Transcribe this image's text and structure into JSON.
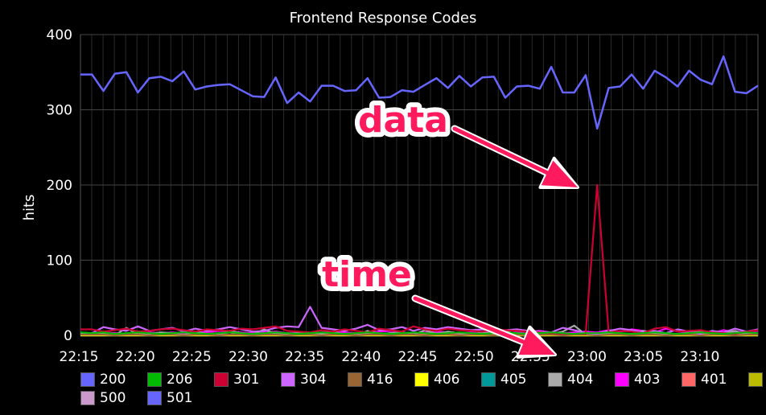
{
  "chart_data": {
    "type": "line",
    "title": "Frontend Response Codes",
    "xlabel": "",
    "ylabel": "hits",
    "ylim": [
      0,
      400
    ],
    "yticks": [
      "0",
      "100",
      "200",
      "300",
      "400"
    ],
    "xticks": [
      "22:15",
      "22:20",
      "22:25",
      "22:30",
      "22:35",
      "22:40",
      "22:45",
      "22:50",
      "22:55",
      "23:00",
      "23:05",
      "23:10"
    ],
    "x_minutes_range": [
      "22:15",
      "23:15"
    ],
    "grid": true,
    "legend_position": "bottom",
    "series": [
      {
        "name": "200",
        "color": "#6666ff",
        "values": [
          347,
          347,
          325,
          348,
          350,
          323,
          342,
          344,
          338,
          351,
          327,
          331,
          333,
          334,
          326,
          318,
          317,
          343,
          309,
          323,
          311,
          332,
          332,
          325,
          326,
          342,
          316,
          317,
          326,
          324,
          333,
          342,
          329,
          345,
          331,
          343,
          344,
          316,
          331,
          332,
          328,
          357,
          323,
          323,
          346,
          275,
          329,
          331,
          347,
          328,
          352,
          343,
          331,
          352,
          340,
          334,
          371,
          324,
          322,
          332
        ]
      },
      {
        "name": "206",
        "color": "#00bb00",
        "values": [
          4,
          3,
          4,
          2,
          3,
          4,
          3,
          2,
          3,
          4,
          3,
          2,
          3,
          4,
          3,
          2,
          3,
          4,
          3,
          2,
          3,
          4,
          3,
          2,
          3,
          4,
          3,
          2,
          3,
          4,
          3,
          2,
          3,
          4,
          3,
          2,
          3,
          4,
          3,
          2,
          3,
          4,
          3,
          2,
          3,
          3,
          4,
          3,
          2,
          3,
          4,
          3,
          2,
          3,
          4,
          3,
          2,
          3,
          4,
          3
        ]
      },
      {
        "name": "301",
        "color": "#cc0033",
        "values": [
          8,
          8,
          5,
          7,
          9,
          5,
          6,
          8,
          9,
          7,
          5,
          8,
          7,
          6,
          9,
          8,
          10,
          12,
          6,
          5,
          4,
          7,
          5,
          8,
          6,
          4,
          9,
          7,
          5,
          12,
          8,
          6,
          9,
          7,
          6,
          5,
          8,
          7,
          6,
          5,
          4,
          3,
          2,
          2,
          2,
          200,
          4,
          6,
          5,
          3,
          9,
          11,
          5,
          6,
          7,
          4,
          3,
          2,
          5,
          7
        ]
      },
      {
        "name": "304",
        "color": "#cc66ff",
        "values": [
          4,
          3,
          11,
          8,
          6,
          12,
          6,
          8,
          10,
          5,
          9,
          6,
          8,
          11,
          8,
          5,
          6,
          10,
          12,
          11,
          38,
          10,
          8,
          6,
          9,
          14,
          7,
          8,
          11,
          6,
          10,
          8,
          11,
          9,
          7,
          8,
          6,
          7,
          8,
          6,
          5,
          4,
          10,
          7,
          3,
          2,
          6,
          9,
          7,
          4,
          6,
          3,
          8,
          5,
          2,
          6,
          4,
          9,
          5,
          8
        ]
      },
      {
        "name": "416",
        "color": "#996633",
        "values": [
          1,
          1,
          1,
          0,
          1,
          1,
          0,
          1,
          1,
          0,
          1,
          1,
          0,
          1,
          1,
          0,
          1,
          1,
          0,
          1,
          1,
          0,
          1,
          1,
          0,
          1,
          1,
          0,
          1,
          1,
          0,
          1,
          1,
          0,
          1,
          1,
          0,
          1,
          1,
          0,
          1,
          1,
          0,
          1,
          1,
          0,
          1,
          1,
          0,
          1,
          1,
          0,
          1,
          1,
          0,
          1,
          1,
          0,
          1,
          1
        ]
      },
      {
        "name": "406",
        "color": "#ffff00",
        "values": [
          0,
          0,
          0,
          0,
          0,
          0,
          0,
          0,
          0,
          0,
          0,
          0,
          0,
          0,
          0,
          0,
          0,
          0,
          0,
          0,
          0,
          0,
          0,
          0,
          0,
          0,
          0,
          0,
          0,
          0,
          0,
          0,
          0,
          0,
          0,
          0,
          0,
          0,
          0,
          0,
          0,
          0,
          0,
          0,
          0,
          0,
          0,
          0,
          0,
          0,
          0,
          0,
          0,
          0,
          0,
          0,
          0,
          0,
          0,
          0
        ]
      },
      {
        "name": "405",
        "color": "#009999",
        "values": [
          0,
          0,
          0,
          0,
          0,
          0,
          0,
          0,
          0,
          0,
          0,
          0,
          0,
          0,
          0,
          0,
          0,
          0,
          0,
          0,
          0,
          0,
          0,
          0,
          0,
          0,
          0,
          0,
          0,
          0,
          0,
          0,
          0,
          0,
          0,
          0,
          0,
          0,
          0,
          0,
          0,
          0,
          0,
          0,
          0,
          0,
          0,
          0,
          0,
          0,
          0,
          0,
          0,
          0,
          0,
          0,
          0,
          0,
          0,
          0
        ]
      },
      {
        "name": "404",
        "color": "#aaaaaa",
        "values": [
          2,
          1,
          3,
          0,
          10,
          1,
          2,
          4,
          3,
          0,
          5,
          2,
          1,
          6,
          3,
          1,
          8,
          2,
          1,
          4,
          3,
          2,
          5,
          1,
          0,
          6,
          2,
          3,
          4,
          1,
          7,
          2,
          5,
          3,
          1,
          4,
          2,
          6,
          1,
          0,
          3,
          2,
          5,
          13,
          1,
          0,
          4,
          2,
          1,
          6,
          3,
          2,
          1,
          4,
          5,
          2,
          3,
          6,
          1,
          2
        ]
      },
      {
        "name": "403",
        "color": "#ff00ff",
        "values": [
          2,
          3,
          4,
          3,
          2,
          5,
          4,
          3,
          4,
          3,
          5,
          4,
          6,
          5,
          4,
          3,
          4,
          5,
          3,
          4,
          3,
          4,
          5,
          4,
          3,
          4,
          5,
          6,
          4,
          3,
          4,
          5,
          4,
          3,
          4,
          5,
          4,
          3,
          4,
          5,
          6,
          4,
          3,
          4,
          5,
          4,
          7,
          5,
          8,
          6,
          4,
          9,
          5,
          4,
          6,
          3,
          7,
          4,
          5,
          6
        ]
      },
      {
        "name": "401",
        "color": "#ff6666",
        "values": [
          1,
          1,
          2,
          1,
          1,
          2,
          1,
          1,
          2,
          1,
          1,
          2,
          1,
          1,
          2,
          1,
          1,
          2,
          1,
          1,
          2,
          1,
          1,
          2,
          1,
          1,
          2,
          1,
          1,
          2,
          1,
          1,
          2,
          1,
          1,
          2,
          1,
          1,
          2,
          1,
          1,
          2,
          1,
          1,
          2,
          1,
          1,
          2,
          1,
          1,
          2,
          1,
          1,
          2,
          1,
          1,
          2,
          1,
          1,
          2
        ]
      },
      {
        "name": "",
        "color": "#bbbb00",
        "values": [
          0,
          0,
          0,
          0,
          0,
          0,
          0,
          0,
          0,
          0,
          0,
          0,
          0,
          0,
          0,
          0,
          0,
          0,
          0,
          0,
          0,
          0,
          0,
          0,
          0,
          0,
          0,
          0,
          0,
          0,
          0,
          0,
          0,
          0,
          0,
          0,
          0,
          0,
          0,
          0,
          0,
          0,
          0,
          0,
          0,
          0,
          0,
          0,
          0,
          0,
          0,
          0,
          0,
          0,
          0,
          0,
          0,
          0,
          0,
          0
        ]
      },
      {
        "name": "500",
        "color": "#cc99cc",
        "values": [
          1,
          2,
          1,
          3,
          2,
          1,
          2,
          3,
          1,
          2,
          3,
          1,
          2,
          1,
          3,
          2,
          1,
          2,
          3,
          1,
          2,
          1,
          2,
          3,
          1,
          2,
          1,
          3,
          2,
          1,
          2,
          3,
          1,
          2,
          1,
          2,
          3,
          1,
          2,
          1,
          2,
          3,
          1,
          2,
          1,
          2,
          3,
          1,
          2,
          1,
          3,
          2,
          1,
          2,
          1,
          2,
          3,
          1,
          2,
          1
        ]
      },
      {
        "name": "501",
        "color": "#6666ff",
        "values": [
          0,
          0,
          0,
          0,
          0,
          0,
          0,
          0,
          0,
          0,
          0,
          0,
          0,
          0,
          0,
          0,
          0,
          0,
          0,
          0,
          0,
          0,
          0,
          0,
          0,
          0,
          0,
          0,
          0,
          0,
          0,
          0,
          0,
          0,
          0,
          0,
          0,
          0,
          0,
          0,
          0,
          0,
          0,
          0,
          0,
          0,
          0,
          0,
          0,
          0,
          0,
          0,
          0,
          0,
          0,
          0,
          0,
          0,
          0,
          0
        ]
      }
    ],
    "annotations": [
      {
        "text": "data",
        "color": "#ff1a5e",
        "points_to": "23:00 spike"
      },
      {
        "text": "time",
        "color": "#ff1a5e",
        "points_to": "x-axis 23:00"
      }
    ]
  },
  "legend_rows": [
    [
      "200",
      "206",
      "301",
      "304",
      "416",
      "406",
      "405",
      "404",
      "403",
      "401",
      ""
    ],
    [
      "500",
      "501"
    ]
  ]
}
